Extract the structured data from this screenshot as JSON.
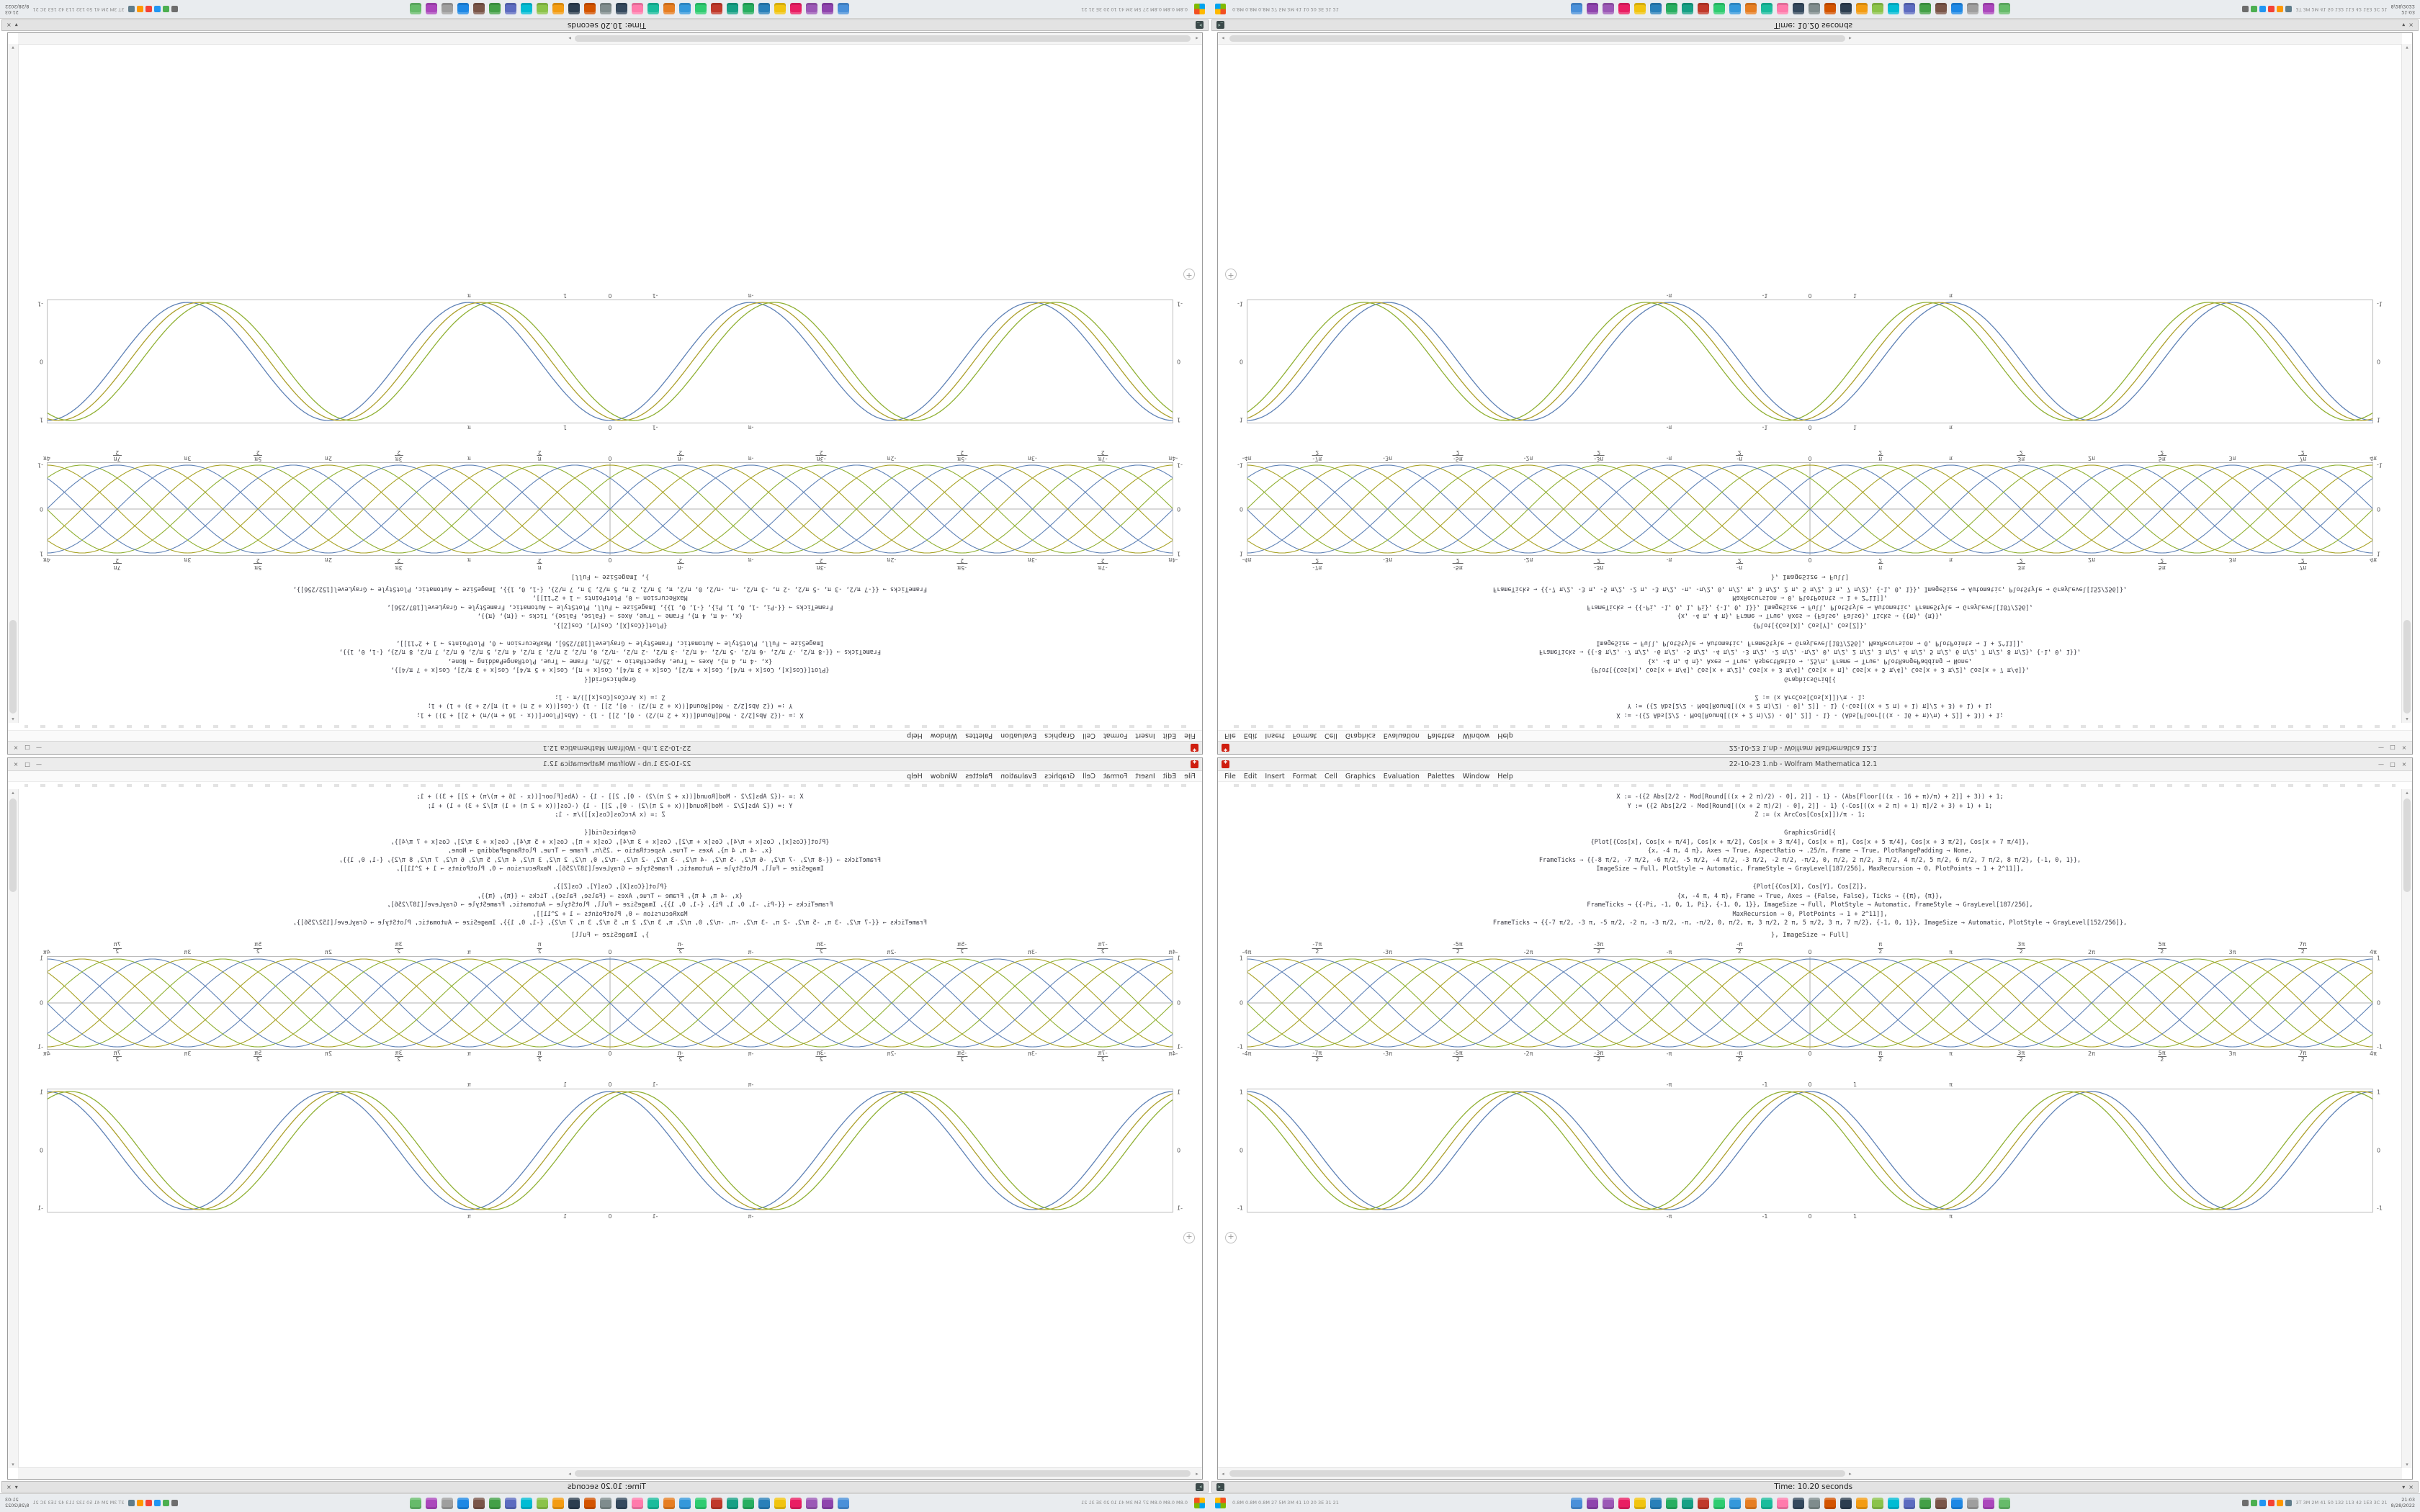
{
  "window": {
    "title": "22-10-23 1.nb - Wolfram Mathematica 12.1",
    "icon_glyph": "*",
    "controls": [
      "—",
      "□",
      "×"
    ],
    "scroll": {
      "up": "▴",
      "down": "▾",
      "left": "◂",
      "right": "▸"
    }
  },
  "menu": {
    "items": [
      "File",
      "Edit",
      "Insert",
      "Format",
      "Cell",
      "Graphics",
      "Evaluation",
      "Palettes",
      "Window",
      "Help"
    ]
  },
  "notebook": {
    "code_lines": [
      "X := -({2 Abs[2/2 - Mod[Round[((x + 2 π)/2) - 0], 2]] - 1} - (Abs[Floor[((x - 16 + π)/π) + 2]] + 3)) + 1;",
      "Y := ({2 Abs[2/2 - Mod[Round[((x + 2 π)/2) - 0], 2]] - 1} (-Cos[((x + 2 π) + 1) π]/2 + 3) + 1) + 1;",
      "Z := (x ArcCos[Cos[x]])/π - 1;",
      "",
      "GraphicsGrid[{",
      "{Plot[{Cos[x], Cos[x + π/4], Cos[x + π/2], Cos[x + 3 π/4], Cos[x + π], Cos[x + 5 π/4], Cos[x + 3 π/2], Cos[x + 7 π/4]},",
      "{x, -4 π, 4 π}, Axes → True, AspectRatio → .25/π, Frame → True, PlotRangePadding → None,",
      "FrameTicks → {{-8 π/2, -7 π/2, -6 π/2, -5 π/2, -4 π/2, -3 π/2, -2 π/2, -π/2, 0, π/2, 2 π/2, 3 π/2, 4 π/2, 5 π/2, 6 π/2, 7 π/2, 8 π/2}, {-1, 0, 1}},",
      "ImageSize → Full, PlotStyle → Automatic, FrameStyle → GrayLevel[187/256], MaxRecursion → 0, PlotPoints → 1 + 2^11]],",
      "",
      "{Plot[{Cos[X], Cos[Y], Cos[Z]},",
      "{x, -4 π, 4 π}, Frame → True, Axes → {False, False}, Ticks → {{π}, {π}},",
      "FrameTicks → {{-Pi, -1, 0, 1, Pi}, {-1, 0, 1}}, ImageSize → Full, PlotStyle → Automatic, FrameStyle → GrayLevel[187/256],",
      "MaxRecursion → 0, PlotPoints → 1 + 2^11]],",
      "FrameTicks → {{-7 π/2, -3 π, -5 π/2, -2 π, -3 π/2, -π, -π/2, 0, π/2, π, 3 π/2, 2 π, 5 π/2, 3 π, 7 π/2}, {-1, 0, 1}}, ImageSize → Automatic, PlotStyle → GrayLevel[152/256]},"
    ],
    "caption": "}, ImageSize → Full]",
    "plus": "+"
  },
  "chart_data": {
    "braid": {
      "type": "line",
      "title": "",
      "xlabel": "",
      "ylabel": "",
      "x_range": [
        -12.566,
        12.566
      ],
      "y_range": [
        -1,
        1
      ],
      "axes": true,
      "frame_color": "#bcbcbc",
      "xticks": [
        "-4π",
        "-7π/2",
        "-3π",
        "-5π/2",
        "-2π",
        "-3π/2",
        "-π",
        "-π/2",
        "0",
        "π/2",
        "π",
        "3π/2",
        "2π",
        "5π/2",
        "3π",
        "7π/2",
        "4π"
      ],
      "yticks": [
        {
          "pct": 3,
          "label": "1"
        },
        {
          "pct": 50,
          "label": "0"
        },
        {
          "pct": 97,
          "label": "-1"
        }
      ],
      "series": [
        {
          "name": "Cos[x]",
          "fn": "cos",
          "freq": 1,
          "phase": 0,
          "amp": 1,
          "color": "#5e81b5"
        },
        {
          "name": "Cos[x+π/4]",
          "fn": "cos",
          "freq": 1,
          "phase": 0.7854,
          "amp": 1,
          "color": "#a8a225"
        },
        {
          "name": "Cos[x+π/2]",
          "fn": "cos",
          "freq": 1,
          "phase": 1.5708,
          "amp": 1,
          "color": "#8fb032"
        },
        {
          "name": "Cos[x+3π/4]",
          "fn": "cos",
          "freq": 1,
          "phase": 2.3562,
          "amp": 1,
          "color": "#5e81b5"
        },
        {
          "name": "Cos[x+π]",
          "fn": "cos",
          "freq": 1,
          "phase": 3.1416,
          "amp": 1,
          "color": "#a8a225"
        },
        {
          "name": "Cos[x+5π/4]",
          "fn": "cos",
          "freq": 1,
          "phase": 3.927,
          "amp": 1,
          "color": "#8fb032"
        },
        {
          "name": "Cos[x+3π/2]",
          "fn": "cos",
          "freq": 1,
          "phase": 4.7124,
          "amp": 1,
          "color": "#5e81b5"
        },
        {
          "name": "Cos[x+7π/4]",
          "fn": "cos",
          "freq": 1,
          "phase": 5.4978,
          "amp": 1,
          "color": "#a8a225"
        }
      ]
    },
    "trio": {
      "type": "line",
      "title": "",
      "xlabel": "",
      "ylabel": "",
      "x_range": [
        -12.566,
        12.566
      ],
      "y_range": [
        -1,
        1
      ],
      "axes": false,
      "frame_color": "#bcbcbc",
      "xticks": [
        {
          "pct": 37.5,
          "label": "-π"
        },
        {
          "pct": 46,
          "label": "-1"
        },
        {
          "pct": 50,
          "label": "0"
        },
        {
          "pct": 54,
          "label": "1"
        },
        {
          "pct": 62.5,
          "label": "π"
        }
      ],
      "yticks": [
        {
          "pct": 3,
          "label": "1"
        },
        {
          "pct": 50,
          "label": "0"
        },
        {
          "pct": 97,
          "label": "-1"
        }
      ],
      "series": [
        {
          "name": "Cos[X]",
          "fn": "cos",
          "freq": 1,
          "phase": 0,
          "amp": 1,
          "color": "#5e81b5"
        },
        {
          "name": "Cos[Y]",
          "fn": "cos",
          "freq": 1,
          "phase": 0.262,
          "amp": 1,
          "color": "#ac9f2a"
        },
        {
          "name": "Cos[Z]",
          "fn": "cos",
          "freq": 1,
          "phase": 0.524,
          "amp": 1,
          "color": "#8fb032"
        }
      ]
    }
  },
  "timebar": {
    "icon_glyph": ">_",
    "text": "Time: 10.20 seconds",
    "controls": [
      "▾",
      "×"
    ]
  },
  "taskbar": {
    "stats_left": "0.8M 0.8M 0.8M 27 5M 3M 41 10 20 3E 31 21",
    "stats_right": "3T 3M 2M 41 50 132 113 42 1E3 3C 21",
    "tray_time": "21:03",
    "tray_date": "8/28/2022",
    "app_icons": [
      "#4a90d9",
      "#8e44ad",
      "#9b59b6",
      "#e91e63",
      "#f1c40f",
      "#2980b9",
      "#27ae60",
      "#16a085",
      "#c0392b",
      "#2ecc71",
      "#3498db",
      "#e67e22",
      "#1abc9c",
      "#ff7bac",
      "#34495e",
      "#7f8c8d",
      "#d35400",
      "#2c3e50",
      "#f39c12",
      "#8bc34a",
      "#00bcd4",
      "#5c6bc0",
      "#43a047",
      "#795548",
      "#1e88e5",
      "#9e9e9e",
      "#ab47bc",
      "#66bb6a"
    ],
    "tray_icons": [
      "#6d6d6d",
      "#4caf50",
      "#2196f3",
      "#f44336",
      "#ff9800",
      "#607d8b"
    ]
  }
}
